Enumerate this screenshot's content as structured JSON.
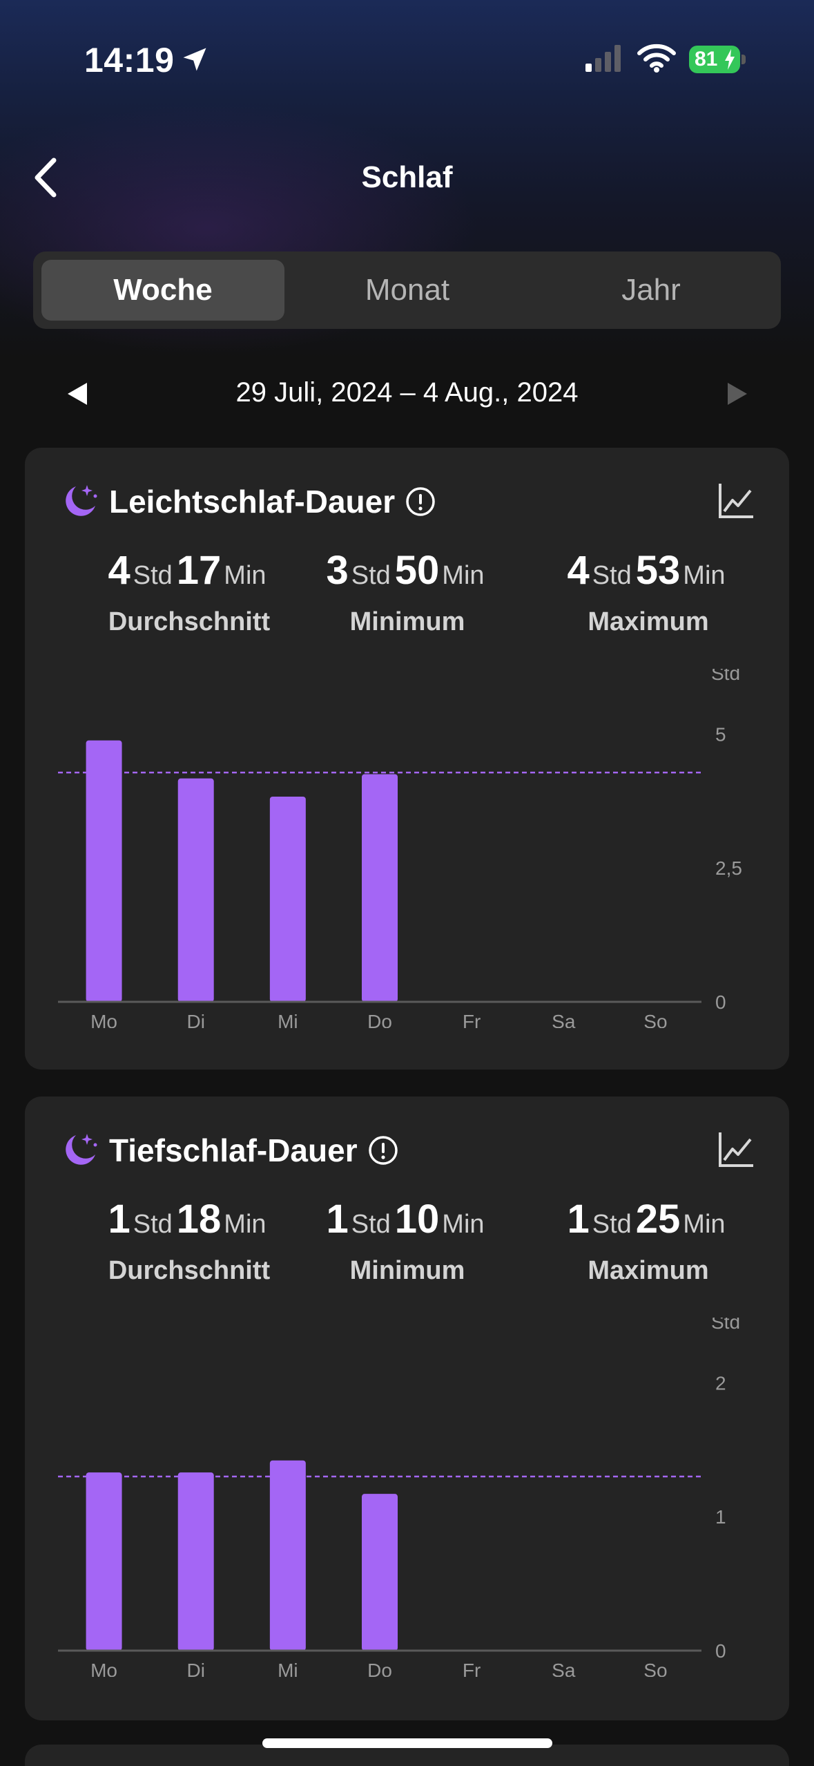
{
  "status_bar": {
    "time": "14:19",
    "battery": "81"
  },
  "nav": {
    "title": "Schlaf"
  },
  "segments": [
    {
      "label": "Woche",
      "active": true
    },
    {
      "label": "Monat",
      "active": false
    },
    {
      "label": "Jahr",
      "active": false
    }
  ],
  "date_range": "29 Juli, 2024 – 4 Aug., 2024",
  "colors": {
    "accent": "#a466f5",
    "card": "#242424",
    "background": "#121212"
  },
  "cards": [
    {
      "title": "Leichtschlaf-Dauer",
      "stats": [
        {
          "h": "4",
          "h_unit": "Std",
          "m": "17",
          "m_unit": "Min",
          "label": "Durchschnitt"
        },
        {
          "h": "3",
          "h_unit": "Std",
          "m": "50",
          "m_unit": "Min",
          "label": "Minimum"
        },
        {
          "h": "4",
          "h_unit": "Std",
          "m": "53",
          "m_unit": "Min",
          "label": "Maximum"
        }
      ]
    },
    {
      "title": "Tiefschlaf-Dauer",
      "stats": [
        {
          "h": "1",
          "h_unit": "Std",
          "m": "18",
          "m_unit": "Min",
          "label": "Durchschnitt"
        },
        {
          "h": "1",
          "h_unit": "Std",
          "m": "10",
          "m_unit": "Min",
          "label": "Minimum"
        },
        {
          "h": "1",
          "h_unit": "Std",
          "m": "25",
          "m_unit": "Min",
          "label": "Maximum"
        }
      ]
    }
  ],
  "chart_data": [
    {
      "type": "bar",
      "categories": [
        "Mo",
        "Di",
        "Mi",
        "Do",
        "Fr",
        "Sa",
        "So"
      ],
      "values": [
        4.88,
        4.17,
        3.83,
        4.25,
        null,
        null,
        null
      ],
      "average": 4.28,
      "ylabel": "Std",
      "yticks": [
        {
          "value": 5,
          "label": "5"
        },
        {
          "value": 2.5,
          "label": "2,5"
        },
        {
          "value": 0,
          "label": "0"
        }
      ],
      "ylim": [
        0,
        5.7
      ]
    },
    {
      "type": "bar",
      "categories": [
        "Mo",
        "Di",
        "Mi",
        "Do",
        "Fr",
        "Sa",
        "So"
      ],
      "values": [
        1.33,
        1.33,
        1.42,
        1.17,
        null,
        null,
        null
      ],
      "average": 1.3,
      "ylabel": "Std",
      "yticks": [
        {
          "value": 2,
          "label": "2"
        },
        {
          "value": 1,
          "label": "1"
        },
        {
          "value": 0,
          "label": "0"
        }
      ],
      "ylim": [
        0,
        2.28
      ]
    }
  ]
}
